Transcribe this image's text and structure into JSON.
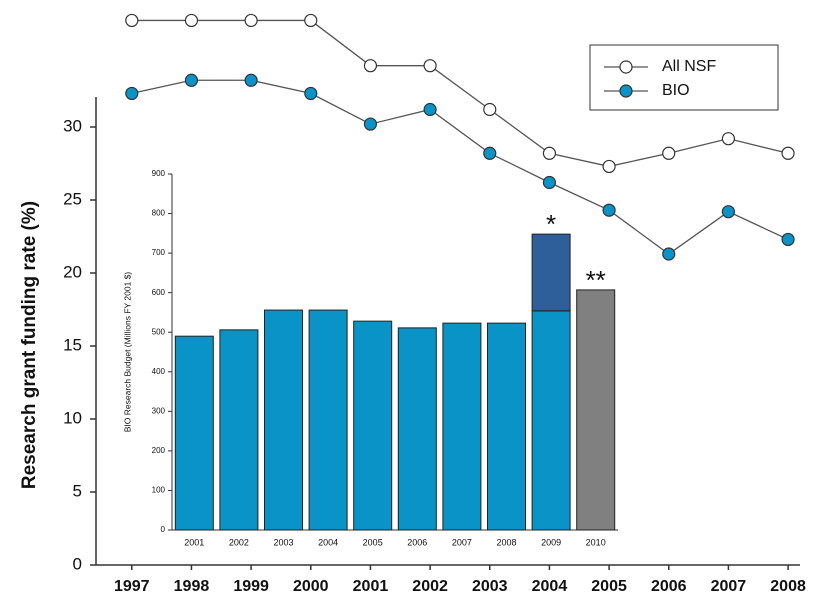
{
  "chart_data": [
    {
      "type": "line",
      "y_label": "Research grant funding rate (%)",
      "x": [
        1997,
        1998,
        1999,
        2000,
        2001,
        2002,
        2003,
        2004,
        2005,
        2006,
        2007,
        2008
      ],
      "xlim": [
        1996.4,
        2008.2
      ],
      "xticks": [
        1997,
        1998,
        1999,
        2000,
        2001,
        2002,
        2003,
        2004,
        2005,
        2006,
        2007,
        2008
      ],
      "ylim": [
        0,
        38.5
      ],
      "yticks": [
        0,
        5,
        10,
        15,
        20,
        25,
        30
      ],
      "legend": "upper right",
      "series": [
        {
          "name": "All NSF",
          "color": "#ffffff",
          "values": [
            37.3,
            37.3,
            37.3,
            37.3,
            34.2,
            34.2,
            31.2,
            28.2,
            27.3,
            28.2,
            29.2,
            28.2
          ]
        },
        {
          "name": "BIO",
          "color": "#0a93c6",
          "values": [
            32.3,
            33.2,
            33.2,
            32.3,
            30.2,
            31.2,
            28.2,
            26.2,
            24.3,
            21.3,
            24.2,
            22.3
          ]
        }
      ]
    },
    {
      "type": "stacked-bar",
      "y_label": "BIO Research Budget (Millions FY 2001 $)",
      "categories": [
        "2001",
        "2002",
        "2003",
        "2004",
        "2005",
        "2006",
        "2007",
        "2008",
        "2009",
        "2010"
      ],
      "ylim": [
        0,
        900
      ],
      "yticks": [
        0,
        100,
        200,
        300,
        400,
        500,
        600,
        700,
        800,
        900
      ],
      "series": [
        {
          "color": "#0a93c6",
          "values": [
            490,
            506,
            556,
            556,
            528,
            511,
            523,
            523,
            554,
            null
          ]
        },
        {
          "color": "#2e5f9a",
          "values": [
            null,
            null,
            null,
            null,
            null,
            null,
            null,
            null,
            194,
            null
          ]
        },
        {
          "color": "#808080",
          "values": [
            null,
            null,
            null,
            null,
            null,
            null,
            null,
            null,
            null,
            607
          ]
        }
      ],
      "annotations": [
        {
          "text": "*",
          "category": "2009"
        },
        {
          "text": "**",
          "category": "2010"
        }
      ]
    }
  ]
}
